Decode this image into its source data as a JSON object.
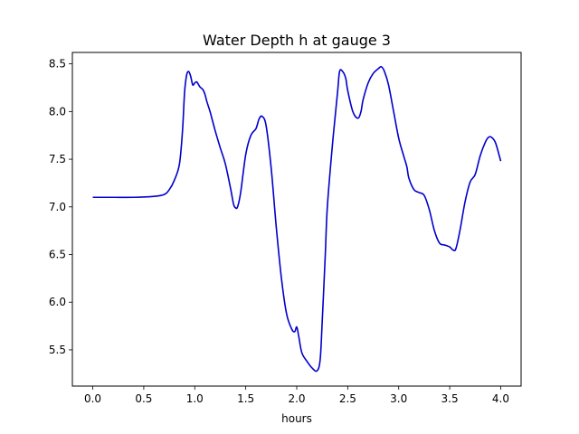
{
  "chart_data": {
    "type": "line",
    "title": "Water Depth h at gauge 3",
    "xlabel": "hours",
    "ylabel": "",
    "xlim": [
      -0.2,
      4.2
    ],
    "ylim": [
      5.12,
      8.62
    ],
    "xticks": [
      0.0,
      0.5,
      1.0,
      1.5,
      2.0,
      2.5,
      3.0,
      3.5,
      4.0
    ],
    "xtick_labels": [
      "0.0",
      "0.5",
      "1.0",
      "1.5",
      "2.0",
      "2.5",
      "3.0",
      "3.5",
      "4.0"
    ],
    "yticks": [
      5.5,
      6.0,
      6.5,
      7.0,
      7.5,
      8.0,
      8.5
    ],
    "ytick_labels": [
      "5.5",
      "6.0",
      "6.5",
      "7.0",
      "7.5",
      "8.0",
      "8.5"
    ],
    "grid": false,
    "series": [
      {
        "color": "#0000cc",
        "x": [
          0.0,
          0.2,
          0.4,
          0.6,
          0.7,
          0.75,
          0.8,
          0.85,
          0.88,
          0.9,
          0.92,
          0.94,
          0.96,
          0.98,
          1.0,
          1.02,
          1.05,
          1.08,
          1.1,
          1.12,
          1.15,
          1.2,
          1.25,
          1.3,
          1.35,
          1.38,
          1.4,
          1.42,
          1.45,
          1.5,
          1.55,
          1.6,
          1.63,
          1.66,
          1.7,
          1.75,
          1.8,
          1.85,
          1.9,
          1.95,
          1.98,
          2.0,
          2.02,
          2.05,
          2.1,
          2.15,
          2.2,
          2.23,
          2.25,
          2.28,
          2.3,
          2.35,
          2.4,
          2.42,
          2.45,
          2.48,
          2.5,
          2.55,
          2.6,
          2.63,
          2.65,
          2.7,
          2.75,
          2.8,
          2.83,
          2.86,
          2.9,
          2.95,
          3.0,
          3.05,
          3.08,
          3.1,
          3.15,
          3.2,
          3.25,
          3.3,
          3.35,
          3.4,
          3.45,
          3.5,
          3.53,
          3.56,
          3.6,
          3.65,
          3.7,
          3.75,
          3.8,
          3.85,
          3.88,
          3.91,
          3.95,
          4.0
        ],
        "y": [
          7.1,
          7.1,
          7.1,
          7.11,
          7.13,
          7.18,
          7.28,
          7.45,
          7.8,
          8.2,
          8.38,
          8.42,
          8.37,
          8.28,
          8.3,
          8.31,
          8.26,
          8.23,
          8.18,
          8.1,
          8.0,
          7.8,
          7.62,
          7.45,
          7.2,
          7.03,
          6.99,
          7.0,
          7.15,
          7.55,
          7.75,
          7.82,
          7.92,
          7.95,
          7.85,
          7.4,
          6.78,
          6.25,
          5.88,
          5.72,
          5.69,
          5.74,
          5.64,
          5.47,
          5.38,
          5.31,
          5.28,
          5.4,
          5.8,
          6.5,
          7.0,
          7.65,
          8.2,
          8.42,
          8.42,
          8.35,
          8.22,
          8.0,
          7.93,
          8.0,
          8.12,
          8.3,
          8.4,
          8.45,
          8.47,
          8.42,
          8.28,
          8.0,
          7.72,
          7.53,
          7.42,
          7.3,
          7.18,
          7.15,
          7.12,
          6.97,
          6.75,
          6.62,
          6.6,
          6.58,
          6.55,
          6.56,
          6.75,
          7.05,
          7.26,
          7.34,
          7.54,
          7.68,
          7.73,
          7.73,
          7.67,
          7.48
        ]
      }
    ]
  }
}
